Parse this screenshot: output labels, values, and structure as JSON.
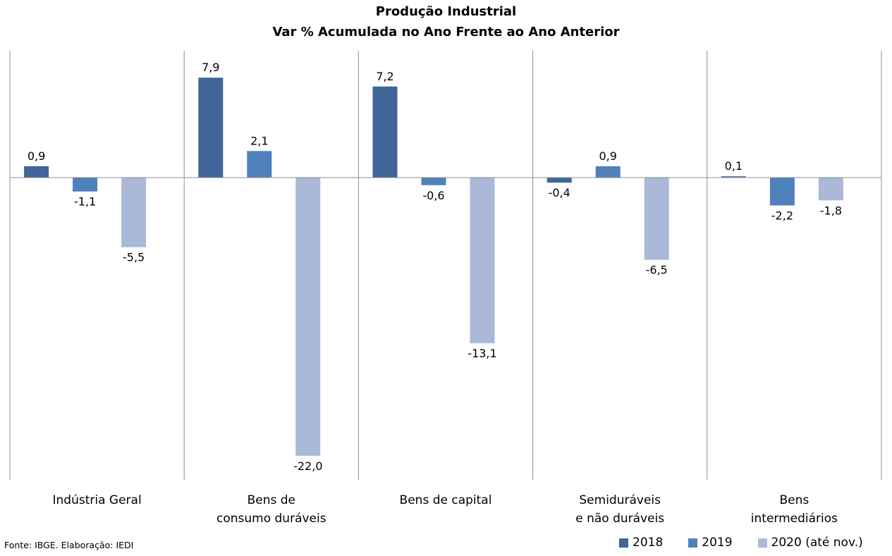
{
  "title": "Produção Industrial",
  "subtitle": "Var % Acumulada no Ano Frente ao Ano Anterior",
  "source": "Fonte: IBGE. Elaboração: IEDI",
  "colors": {
    "2018": "#3f6599",
    "2019": "#4f81bd",
    "2020": "#aab9d8"
  },
  "chart_data": {
    "type": "bar",
    "title": "Produção Industrial",
    "subtitle": "Var % Acumulada no Ano Frente ao Ano Anterior",
    "categories": [
      [
        "Indústria Geral"
      ],
      [
        "Bens de",
        "consumo duráveis"
      ],
      [
        "Bens de capital"
      ],
      [
        "Semiduráveis",
        "e não duráveis"
      ],
      [
        "Bens",
        "intermediários"
      ]
    ],
    "series": [
      {
        "name": "2018",
        "values": [
          0.9,
          7.9,
          7.2,
          -0.4,
          0.1
        ]
      },
      {
        "name": "2019",
        "values": [
          -1.1,
          2.1,
          -0.6,
          0.9,
          -2.2
        ]
      },
      {
        "name": "2020 (até nov.)",
        "values": [
          -5.5,
          -22.0,
          -13.1,
          -6.5,
          -1.8
        ]
      }
    ],
    "data_labels": [
      [
        "0,9",
        "7,9",
        "7,2",
        "-0,4",
        "0,1"
      ],
      [
        "-1,1",
        "2,1",
        "-0,6",
        "0,9",
        "-2,2"
      ],
      [
        "-5,5",
        "-22,0",
        "-13,1",
        "-6,5",
        "-1,8"
      ]
    ],
    "ylim": [
      -24,
      10
    ],
    "grid": false,
    "legend_position": "bottom-right"
  }
}
